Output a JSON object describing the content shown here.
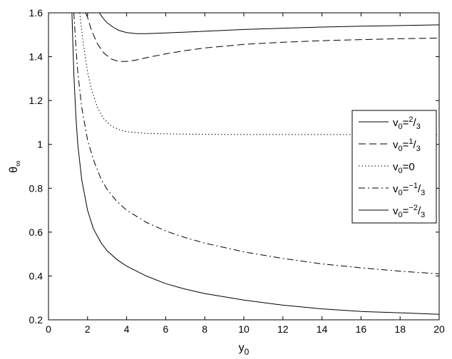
{
  "chart_data": {
    "type": "line",
    "title": "",
    "xlabel": {
      "base": "y",
      "sub": "0"
    },
    "ylabel": {
      "base": "θ",
      "sub": "∞"
    },
    "xlim": [
      0,
      20
    ],
    "ylim": [
      0.2,
      1.6
    ],
    "xticks": [
      "0",
      "2",
      "4",
      "6",
      "8",
      "10",
      "12",
      "14",
      "16",
      "18",
      "20"
    ],
    "yticks": [
      "0.2",
      "0.4",
      "0.6",
      "0.8",
      "1",
      "1.2",
      "1.4",
      "1.6"
    ],
    "grid": false,
    "legend_position": "right",
    "series": [
      {
        "name": "v0=2/3",
        "legend": {
          "base": "v",
          "sub": "0",
          "eq": "=",
          "sup": "2",
          "slash": "/",
          "den": "3"
        },
        "dash": "solid",
        "x": [
          2.6,
          2.8,
          3.0,
          3.3,
          3.6,
          4.0,
          4.5,
          5.0,
          6,
          7,
          8,
          10,
          12,
          14,
          16,
          18,
          20
        ],
        "y": [
          1.6,
          1.575,
          1.555,
          1.535,
          1.52,
          1.51,
          1.505,
          1.505,
          1.508,
          1.512,
          1.516,
          1.524,
          1.53,
          1.535,
          1.539,
          1.542,
          1.545
        ]
      },
      {
        "name": "v0=1/3",
        "legend": {
          "base": "v",
          "sub": "0",
          "eq": "=",
          "sup": "1",
          "slash": "/",
          "den": "3"
        },
        "dash": "dashed",
        "x": [
          1.9,
          2.0,
          2.2,
          2.5,
          2.8,
          3.2,
          3.6,
          4.0,
          4.5,
          5,
          6,
          7,
          8,
          10,
          12,
          14,
          16,
          18,
          20
        ],
        "y": [
          1.6,
          1.58,
          1.52,
          1.46,
          1.42,
          1.39,
          1.378,
          1.378,
          1.385,
          1.395,
          1.413,
          1.428,
          1.44,
          1.456,
          1.466,
          1.473,
          1.478,
          1.482,
          1.485
        ]
      },
      {
        "name": "v0=0",
        "legend": {
          "base": "v",
          "sub": "0",
          "eq": "=0",
          "sup": "",
          "slash": "",
          "den": ""
        },
        "dash": "dotted",
        "x": [
          1.6,
          1.7,
          1.8,
          2.0,
          2.2,
          2.5,
          2.8,
          3.2,
          3.6,
          4.0,
          5,
          6,
          8,
          10,
          12,
          14,
          16,
          18,
          20
        ],
        "y": [
          1.6,
          1.52,
          1.45,
          1.33,
          1.25,
          1.17,
          1.12,
          1.085,
          1.068,
          1.058,
          1.05,
          1.048,
          1.046,
          1.045,
          1.045,
          1.045,
          1.045,
          1.045,
          1.045
        ]
      },
      {
        "name": "v0=-1/3",
        "legend": {
          "base": "v",
          "sub": "0",
          "eq": "=",
          "sup": "−1",
          "slash": "/",
          "den": "3"
        },
        "dash": "dashdot",
        "x": [
          1.3,
          1.4,
          1.5,
          1.7,
          2.0,
          2.3,
          2.7,
          3.0,
          3.5,
          4,
          5,
          6,
          7,
          8,
          10,
          12,
          14,
          16,
          18,
          20
        ],
        "y": [
          1.6,
          1.45,
          1.33,
          1.17,
          1.02,
          0.93,
          0.84,
          0.795,
          0.74,
          0.7,
          0.645,
          0.605,
          0.575,
          0.55,
          0.51,
          0.48,
          0.455,
          0.437,
          0.422,
          0.41
        ]
      },
      {
        "name": "v0=-2/3",
        "legend": {
          "base": "v",
          "sub": "0",
          "eq": "=",
          "sup": "−2",
          "slash": "/",
          "den": "3"
        },
        "dash": "solid",
        "x": [
          1.2,
          1.25,
          1.3,
          1.4,
          1.5,
          1.7,
          2.0,
          2.3,
          2.7,
          3.0,
          3.5,
          4,
          5,
          6,
          7,
          8,
          10,
          12,
          14,
          16,
          18,
          20
        ],
        "y": [
          1.6,
          1.45,
          1.32,
          1.13,
          1.0,
          0.84,
          0.7,
          0.615,
          0.55,
          0.515,
          0.475,
          0.445,
          0.4,
          0.365,
          0.34,
          0.32,
          0.29,
          0.267,
          0.25,
          0.238,
          0.232,
          0.225
        ]
      }
    ]
  }
}
